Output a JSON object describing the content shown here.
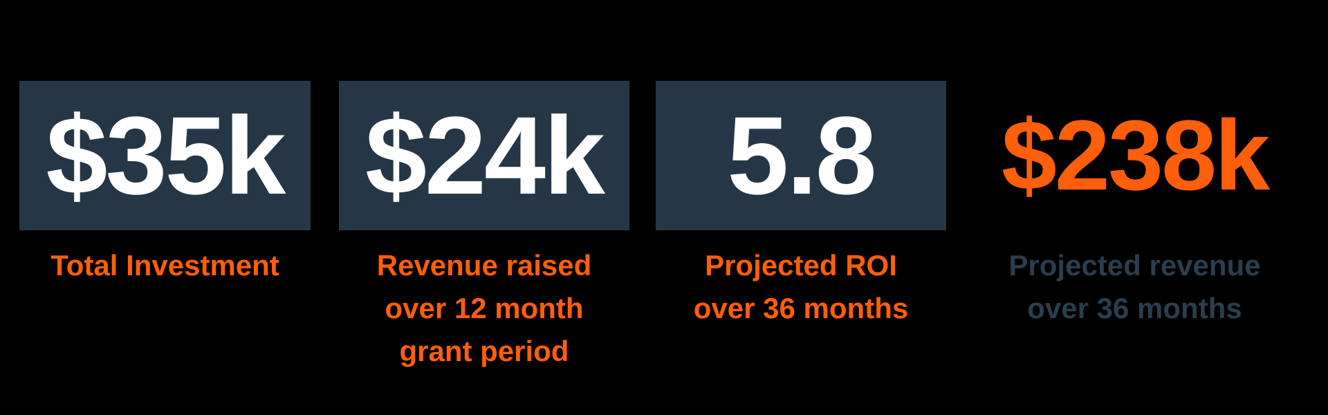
{
  "canvas": {
    "background": "#000000"
  },
  "colors": {
    "box_navy": "#253746",
    "accent_orange": "#FF5E0A",
    "number_white": "#FFFFFF",
    "label_navy": "#2B3D4E"
  },
  "stats": [
    {
      "value": "$35k",
      "label": "Total Investment",
      "boxed": true,
      "value_color": "#FFFFFF",
      "label_color": "#FF5E0A"
    },
    {
      "value": "$24k",
      "label": "Revenue raised\nover 12 month\ngrant period",
      "boxed": true,
      "value_color": "#FFFFFF",
      "label_color": "#FF5E0A"
    },
    {
      "value": "5.8",
      "label": "Projected ROI\nover 36 months",
      "boxed": true,
      "value_color": "#FFFFFF",
      "label_color": "#FF5E0A"
    },
    {
      "value": "$238k",
      "label": "Projected revenue\nover 36 months",
      "boxed": false,
      "value_color": "#FF5E0A",
      "label_color": "#2B3D4E"
    }
  ],
  "chart_data": {
    "type": "table",
    "title": "",
    "columns": [
      "metric",
      "value"
    ],
    "rows": [
      [
        "Total Investment",
        "$35k"
      ],
      [
        "Revenue raised over 12 month grant period",
        "$24k"
      ],
      [
        "Projected ROI over 36 months",
        "5.8"
      ],
      [
        "Projected revenue over 36 months",
        "$238k"
      ]
    ],
    "notes": "Four KPI stat cards; first three values shown on dark navy boxes in white, fourth value shown in orange without a box"
  }
}
